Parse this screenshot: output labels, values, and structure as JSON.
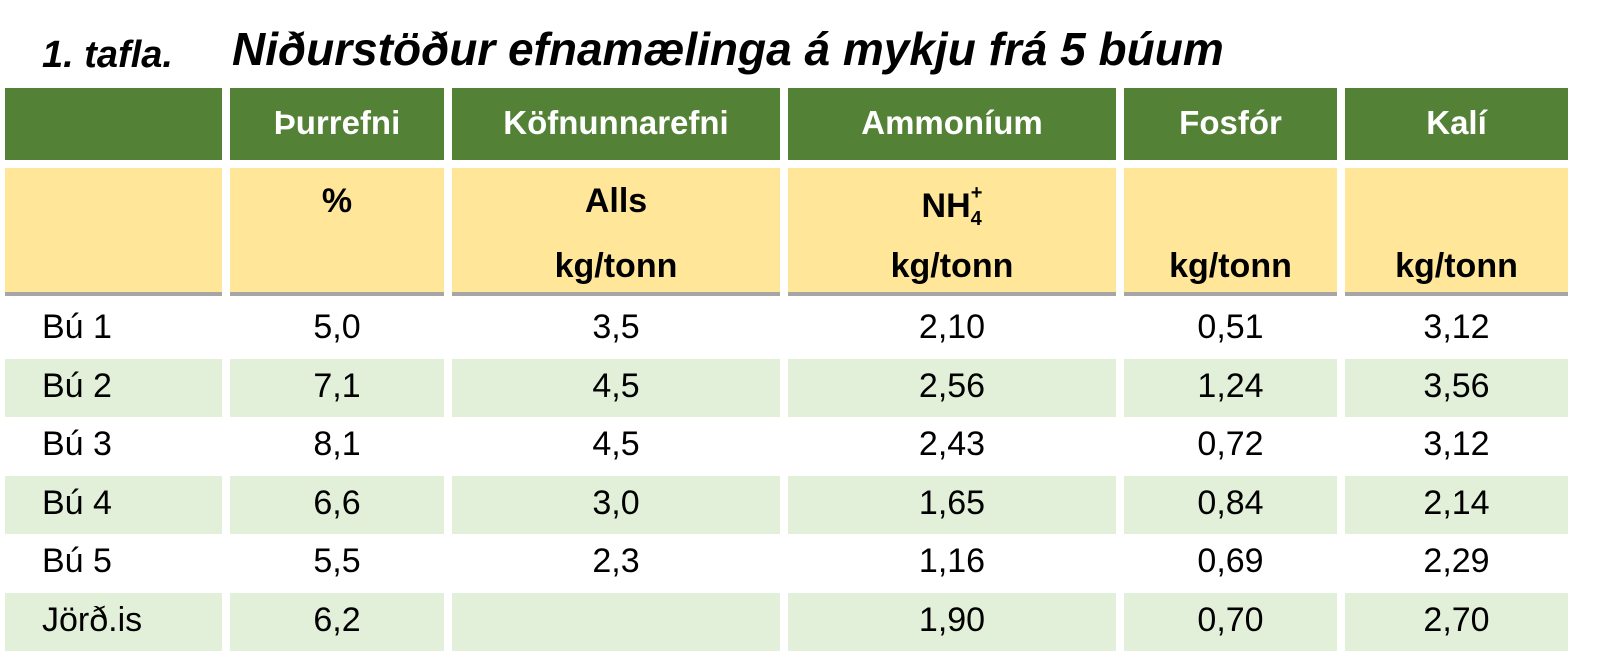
{
  "title": {
    "number": "1. tafla.",
    "text": "Niðurstöður efnamælinga á mykju frá 5 búum"
  },
  "table": {
    "columns": [
      "Þurrefni",
      "Köfnunnarefni",
      "Ammoníum",
      "Fosfór",
      "Kalí"
    ],
    "units": [
      {
        "line1": "%"
      },
      {
        "line1": "Alls",
        "line2": "kg/tonn"
      },
      {
        "line1": {
          "base": "NH",
          "sub": "4",
          "sup": "+"
        },
        "line2": "kg/tonn"
      },
      {
        "line2": "kg/tonn"
      },
      {
        "line2": "kg/tonn"
      }
    ],
    "rows": [
      {
        "label": "Bú 1",
        "values": [
          "5,0",
          "3,5",
          "2,10",
          "0,51",
          "3,12"
        ]
      },
      {
        "label": "Bú 2",
        "values": [
          "7,1",
          "4,5",
          "2,56",
          "1,24",
          "3,56"
        ]
      },
      {
        "label": "Bú 3",
        "values": [
          "8,1",
          "4,5",
          "2,43",
          "0,72",
          "3,12"
        ]
      },
      {
        "label": "Bú 4",
        "values": [
          "6,6",
          "3,0",
          "1,65",
          "0,84",
          "2,14"
        ]
      },
      {
        "label": "Bú 5",
        "values": [
          "5,5",
          "2,3",
          "1,16",
          "0,69",
          "2,29"
        ]
      },
      {
        "label": "Jörð.is",
        "values": [
          "6,2",
          null,
          "1,90",
          "0,70",
          "2,70"
        ]
      }
    ]
  }
}
